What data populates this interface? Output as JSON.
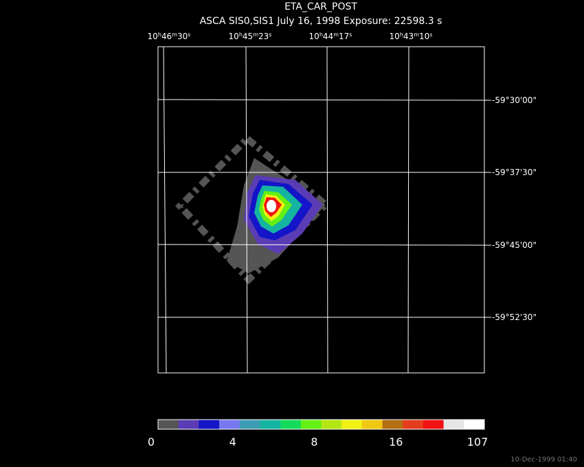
{
  "title": "ETA_CAR_POST",
  "subtitle": "ASCA SIS0,SIS1 July 16, 1998 Exposure: 22598.3 s",
  "ra_labels": [
    [
      "10",
      "h",
      "46",
      "m",
      "30",
      "s"
    ],
    [
      "10",
      "h",
      "45",
      "m",
      "23",
      "s"
    ],
    [
      "10",
      "h",
      "44",
      "m",
      "17",
      "s"
    ],
    [
      "10",
      "h",
      "43",
      "m",
      "10",
      "s"
    ]
  ],
  "dec_labels": [
    "-59°30'00\"",
    "-59°37'30\"",
    "-59°45'00\"",
    "-59°52'30\""
  ],
  "colorbar": {
    "colors": [
      "#555555",
      "#5a3cb4",
      "#1414c8",
      "#7878f0",
      "#3c9cb4",
      "#14b4a0",
      "#14dc5a",
      "#64f014",
      "#b4e614",
      "#f0f014",
      "#f0c814",
      "#b46e14",
      "#e63c1e",
      "#f01414",
      "#e6e6e6",
      "#ffffff"
    ],
    "ticks": [
      0,
      4,
      8,
      16,
      107
    ]
  },
  "timestamp": "10-Dec-1999 01:40"
}
